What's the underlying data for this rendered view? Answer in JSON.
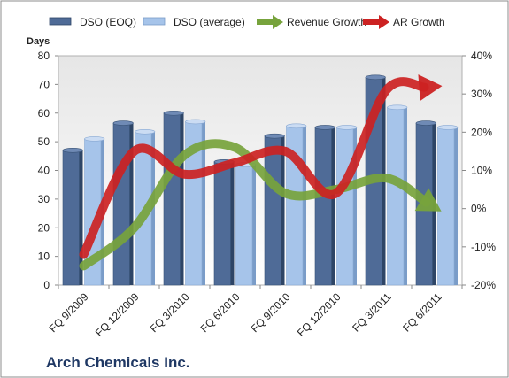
{
  "chart_data": {
    "type": "bar",
    "title": "Arch Chemicals Inc.",
    "ylabel": "Days",
    "categories": [
      "FQ 9/2009",
      "FQ 12/2009",
      "FQ 3/2010",
      "FQ 6/2010",
      "FQ 9/2010",
      "FQ 12/2010",
      "FQ 3/2011",
      "FQ 6/2011"
    ],
    "ylim": [
      0,
      80
    ],
    "yticks": [
      0,
      10,
      20,
      30,
      40,
      50,
      60,
      70,
      80
    ],
    "y2lim": [
      -20,
      40
    ],
    "y2ticks": [
      "-20%",
      "-10%",
      "0%",
      "10%",
      "20%",
      "30%",
      "40%"
    ],
    "series": [
      {
        "name": "DSO (EOQ)",
        "kind": "bar",
        "axis": "left",
        "color": "#4f6b97",
        "values": [
          47,
          56.5,
          60,
          43,
          52,
          55,
          72.5,
          56.5
        ]
      },
      {
        "name": "DSO (average)",
        "kind": "bar",
        "axis": "left",
        "color": "#a6c4ea",
        "values": [
          51,
          53.5,
          57,
          42,
          55.5,
          55,
          62,
          55
        ]
      },
      {
        "name": "Revenue Growth",
        "kind": "arrow-line",
        "axis": "right",
        "color": "#77a33c",
        "values": [
          -15,
          -5,
          14,
          16,
          4,
          5,
          8,
          0
        ]
      },
      {
        "name": "AR Growth",
        "kind": "arrow-line",
        "axis": "right",
        "color": "#cc2222",
        "values": [
          -12,
          15,
          9,
          12,
          15,
          4,
          31,
          32
        ]
      }
    ],
    "grid": false,
    "legend_position": "top"
  }
}
